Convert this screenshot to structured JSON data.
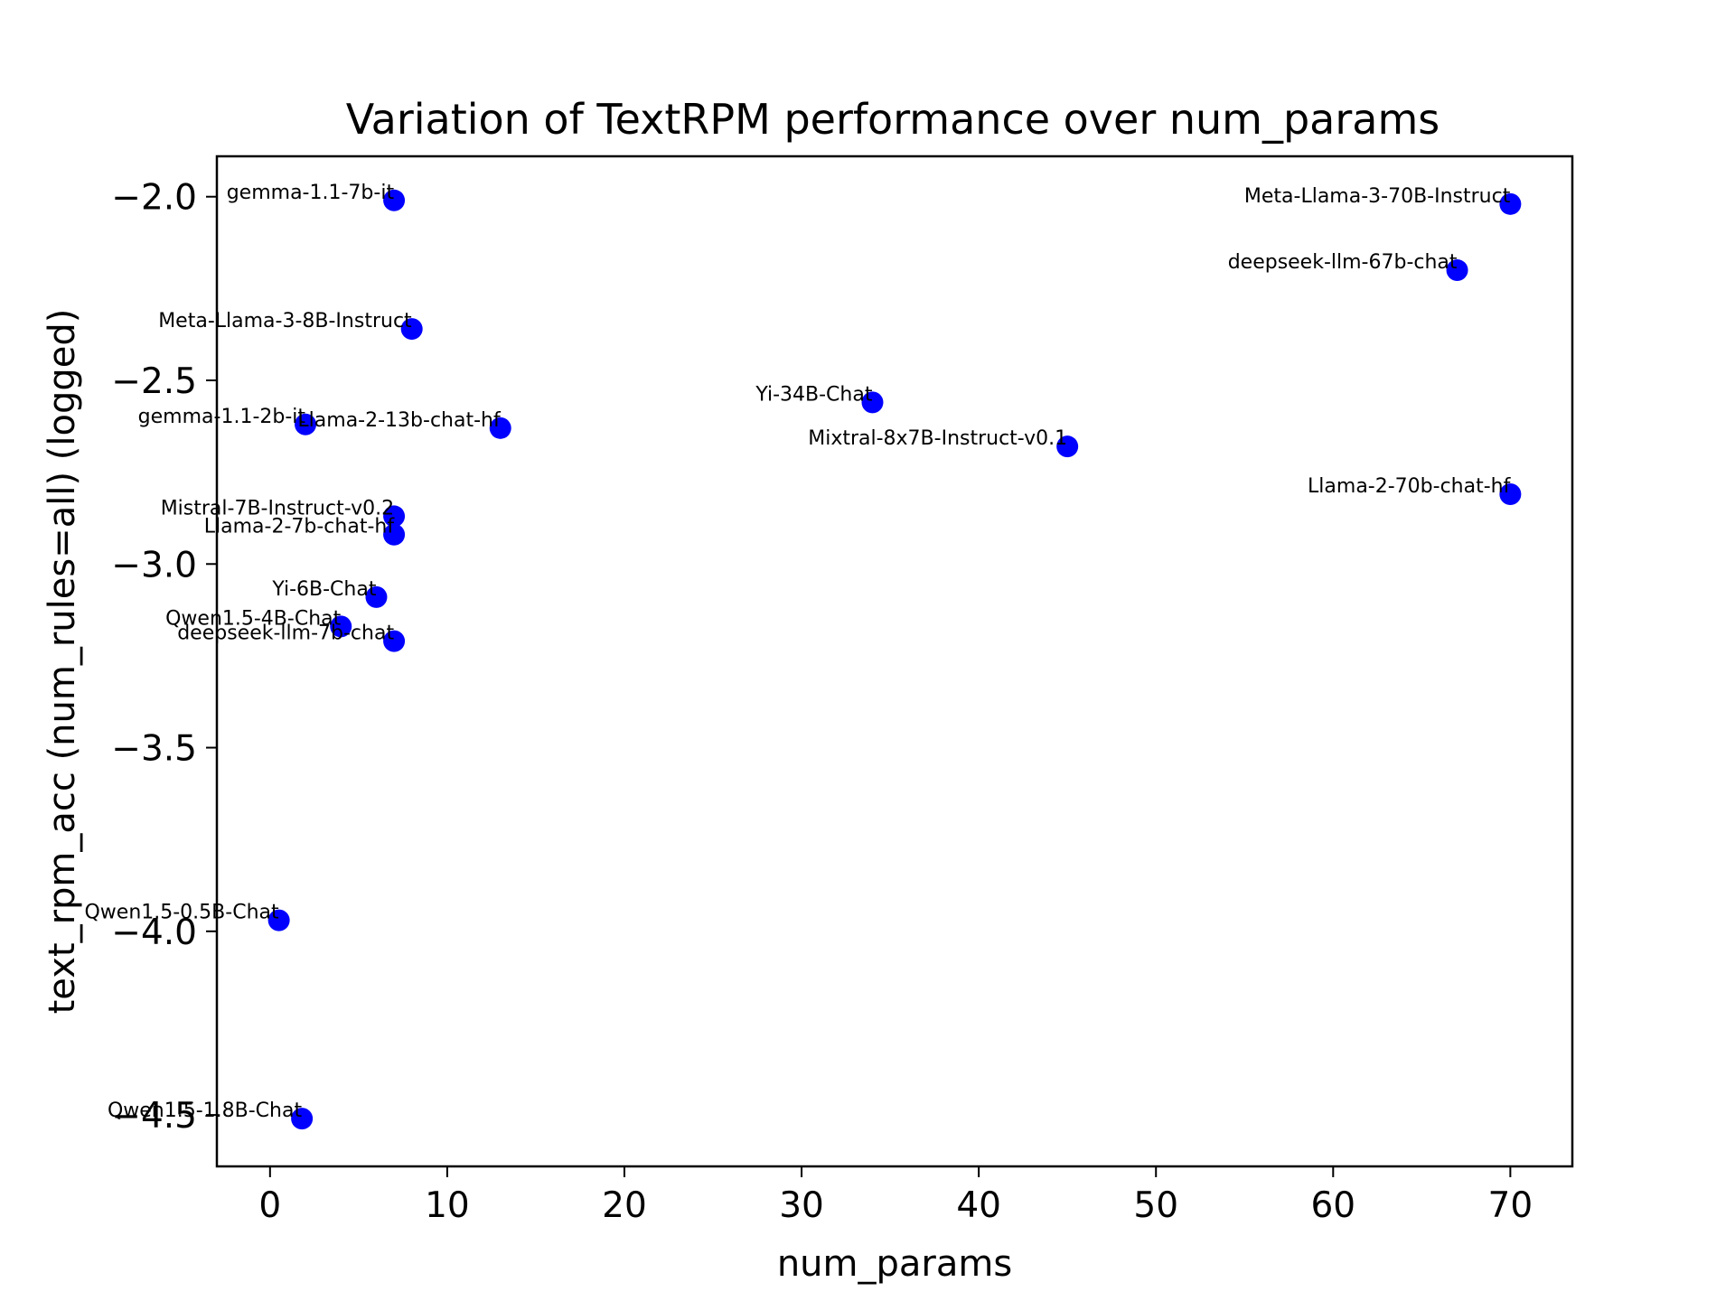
{
  "chart_data": {
    "type": "scatter",
    "title": "Variation of TextRPM performance over num_params",
    "xlabel": "num_params",
    "ylabel": "text_rpm_acc (num_rules=all) (logged)",
    "xlim": [
      -3,
      73.5
    ],
    "ylim": [
      -4.64,
      -1.89
    ],
    "xticks": [
      0,
      10,
      20,
      30,
      40,
      50,
      60,
      70
    ],
    "yticks": [
      -2.0,
      -2.5,
      -3.0,
      -3.5,
      -4.0,
      -4.5
    ],
    "ytick_labels": [
      "−2.0",
      "−2.5",
      "−3.0",
      "−3.5",
      "−4.0",
      "−4.5"
    ],
    "grid": false,
    "marker_color": "#0000ff",
    "points": [
      {
        "label": "gemma-1.1-7b-it",
        "x": 7,
        "y": -2.01
      },
      {
        "label": "Meta-Llama-3-70B-Instruct",
        "x": 70,
        "y": -2.02
      },
      {
        "label": "deepseek-llm-67b-chat",
        "x": 67,
        "y": -2.2
      },
      {
        "label": "Meta-Llama-3-8B-Instruct",
        "x": 8,
        "y": -2.36
      },
      {
        "label": "Yi-34B-Chat",
        "x": 34,
        "y": -2.56
      },
      {
        "label": "gemma-1.1-2b-it",
        "x": 2,
        "y": -2.62
      },
      {
        "label": "Llama-2-13b-chat-hf",
        "x": 13,
        "y": -2.63
      },
      {
        "label": "Mixtral-8x7B-Instruct-v0.1",
        "x": 45,
        "y": -2.68
      },
      {
        "label": "Llama-2-70b-chat-hf",
        "x": 70,
        "y": -2.81
      },
      {
        "label": "Mistral-7B-Instruct-v0.2",
        "x": 7,
        "y": -2.87
      },
      {
        "label": "Llama-2-7b-chat-hf",
        "x": 7,
        "y": -2.92
      },
      {
        "label": "Yi-6B-Chat",
        "x": 6,
        "y": -3.09
      },
      {
        "label": "Qwen1.5-4B-Chat",
        "x": 4,
        "y": -3.17
      },
      {
        "label": "deepseek-llm-7b-chat",
        "x": 7,
        "y": -3.21
      },
      {
        "label": "Qwen1.5-0.5B-Chat",
        "x": 0.5,
        "y": -3.97
      },
      {
        "label": "Qwen1.5-1.8B-Chat",
        "x": 1.8,
        "y": -4.51
      }
    ]
  }
}
